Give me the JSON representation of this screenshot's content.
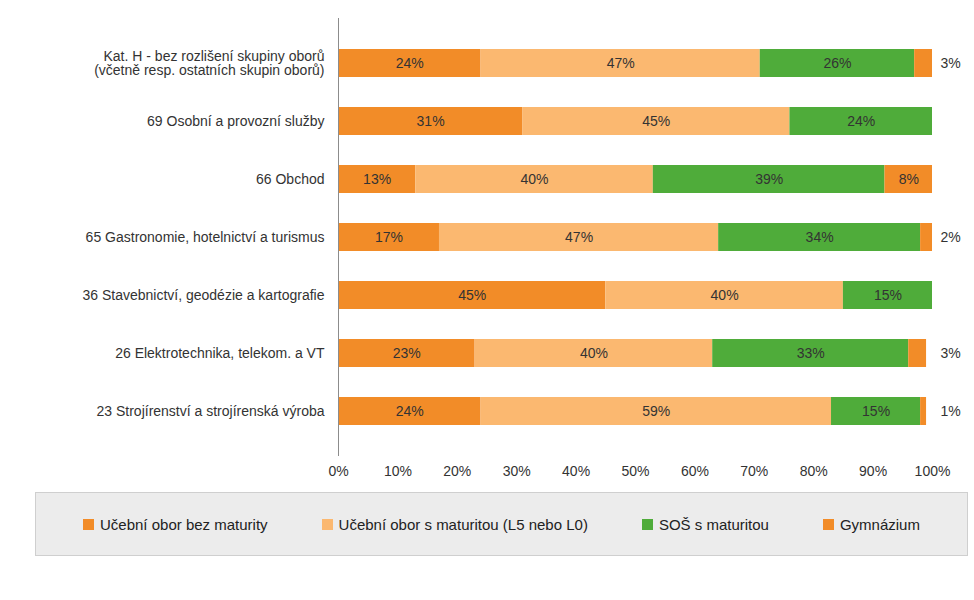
{
  "chart_data": {
    "type": "bar",
    "orientation": "horizontal",
    "stacked": true,
    "data_labels": true,
    "grid": false,
    "legend": "bottom",
    "categories": [
      "Kat. H - bez rozlišení skupiny oborů\n(včetně resp. ostatních skupin oborů)",
      "69 Osobní a provozní služby",
      "66 Obchod",
      "65 Gastronomie, hotelnictví a turismus",
      "36 Stavebnictví, geodézie a kartografie",
      "26 Elektrotechnika, telekom. a VT",
      "23 Strojírenství a strojírenská výroba"
    ],
    "series": [
      {
        "name": "Učební obor bez maturity",
        "color": "#f28c28",
        "values": [
          24,
          31,
          13,
          17,
          45,
          23,
          24
        ],
        "value_labels": [
          "24%",
          "31%",
          "13%",
          "17%",
          "45%",
          "23%",
          "24%"
        ]
      },
      {
        "name": "Učební obor s maturitou (L5 nebo L0)",
        "color": "#fbb870",
        "values": [
          47,
          45,
          40,
          47,
          40,
          40,
          59
        ],
        "value_labels": [
          "47%",
          "45%",
          "40%",
          "47%",
          "40%",
          "40%",
          "59%"
        ]
      },
      {
        "name": "SOŠ s maturitou",
        "color": "#4fac3a",
        "values": [
          26,
          24,
          39,
          34,
          15,
          33,
          15
        ],
        "value_labels": [
          "26%",
          "24%",
          "39%",
          "34%",
          "15%",
          "33%",
          "15%"
        ]
      },
      {
        "name": "Gymnázium",
        "color": "#f28c28",
        "values": [
          3,
          null,
          8,
          2,
          null,
          3,
          1
        ],
        "value_labels": [
          "3%",
          null,
          "8%",
          "2%",
          null,
          "3%",
          "1%"
        ]
      }
    ],
    "xlim": [
      0,
      100
    ],
    "xticks": [
      {
        "value": 0,
        "label": "0%"
      },
      {
        "value": 10,
        "label": "10%"
      },
      {
        "value": 20,
        "label": "20%"
      },
      {
        "value": 30,
        "label": "30%"
      },
      {
        "value": 40,
        "label": "40%"
      },
      {
        "value": 50,
        "label": "50%"
      },
      {
        "value": 60,
        "label": "60%"
      },
      {
        "value": 70,
        "label": "70%"
      },
      {
        "value": 80,
        "label": "80%"
      },
      {
        "value": 90,
        "label": "90%"
      },
      {
        "value": 100,
        "label": "100%"
      }
    ]
  }
}
